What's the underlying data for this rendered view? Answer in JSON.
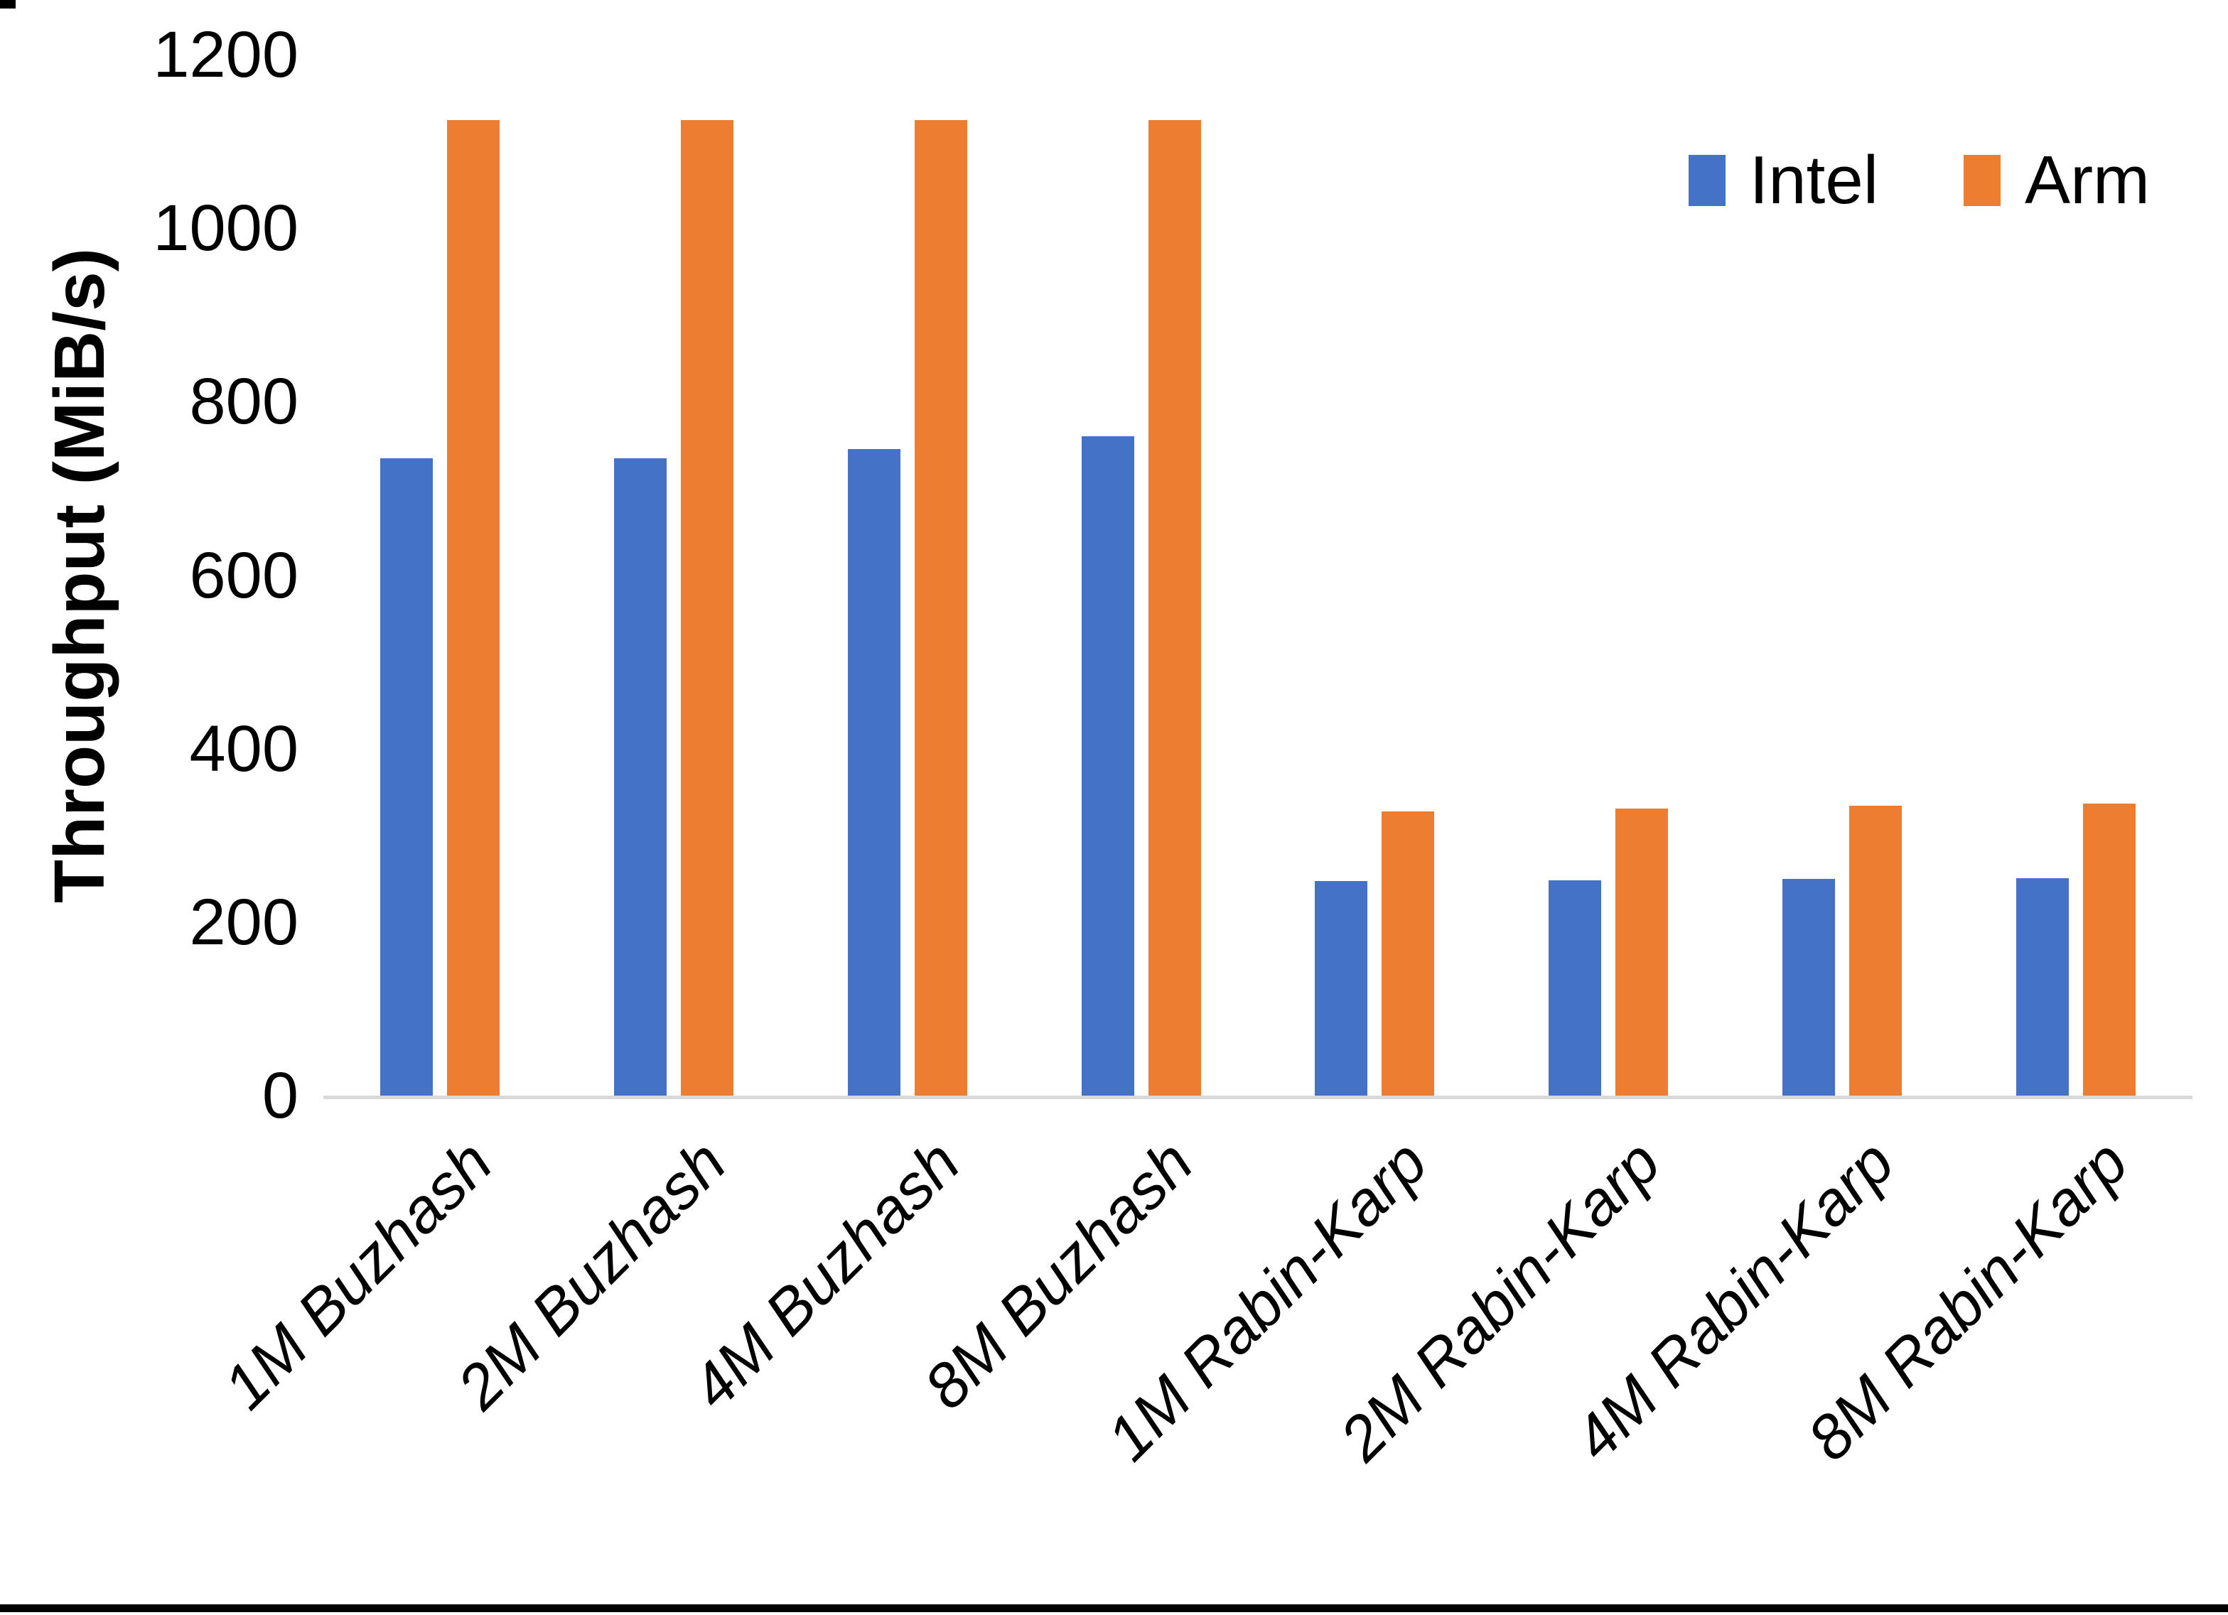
{
  "chart_data": {
    "type": "bar",
    "title": "",
    "xlabel": "",
    "ylabel": "Throughput (MiB/s)",
    "ylim": [
      0,
      1200
    ],
    "yticks": [
      0,
      200,
      400,
      600,
      800,
      1000,
      1200
    ],
    "grid": false,
    "legend_position": "top-right",
    "categories": [
      "1M Buzhash",
      "2M Buzhash",
      "4M Buzhash",
      "8M Buzhash",
      "1M Rabin-Karp",
      "2M Rabin-Karp",
      "4M Rabin-Karp",
      "8M Rabin-Karp"
    ],
    "series": [
      {
        "name": "Intel",
        "color": "#4472C4",
        "values": [
          735,
          735,
          745,
          760,
          247,
          248,
          250,
          251
        ]
      },
      {
        "name": "Arm",
        "color": "#ED7D31",
        "values": [
          1125,
          1125,
          1125,
          1125,
          328,
          331,
          334,
          337
        ]
      }
    ]
  },
  "colors": {
    "axis_line": "#D9D9D9",
    "text": "#000000",
    "background": "#FFFFFF",
    "frame": "#000000"
  }
}
